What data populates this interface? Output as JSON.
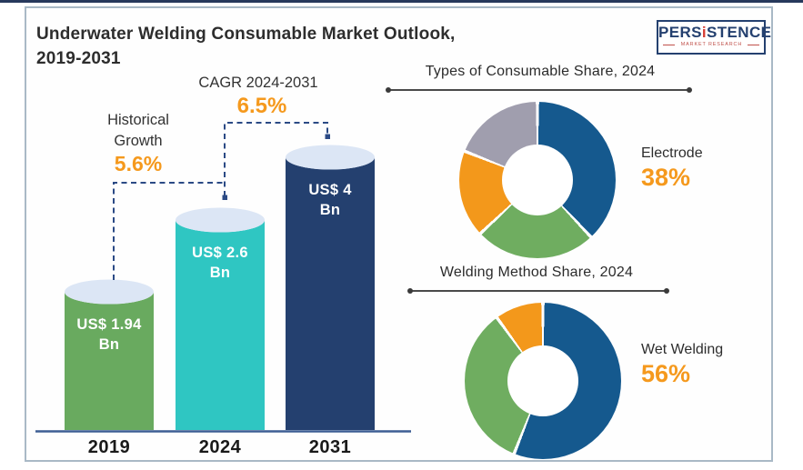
{
  "header": {
    "title_line1": "Underwater Welding Consumable Market Outlook,",
    "title_line2": "2019-2031"
  },
  "logo": {
    "part1": "PERS",
    "accent_letter": "i",
    "part2": "STENCE",
    "subtitle": "MARKET RESEARCH"
  },
  "palette": {
    "accent_orange": "#f5991d",
    "navy": "#24406f",
    "teal": "#2fc6c2",
    "green": "#69aa5f",
    "donut_blue": "#15598e",
    "donut_green": "#6fad60",
    "donut_orange": "#f3981b",
    "donut_gray": "#a09eae",
    "cylinder_top": "#dce6f5",
    "axis_line": "#3d5e94",
    "dashed_line": "#2b4a85"
  },
  "chart_data": [
    {
      "type": "bar",
      "title": "Underwater Welding Consumable Market Outlook, 2019-2031",
      "categories": [
        "2019",
        "2024",
        "2031"
      ],
      "values": [
        1.94,
        2.6,
        4
      ],
      "unit": "US$ Bn",
      "ylim": [
        0,
        4.4
      ],
      "value_labels": [
        [
          "US$ 1.94",
          "Bn"
        ],
        [
          "US$ 2.6",
          "Bn"
        ],
        [
          "US$ 4",
          "Bn"
        ]
      ],
      "bar_colors": [
        "#69aa5f",
        "#2fc6c2",
        "#24406f"
      ],
      "annotations": [
        {
          "label": "Historical Growth",
          "label_lines": [
            "Historical",
            "Growth"
          ],
          "value": "5.6%",
          "span": [
            "2019",
            "2024"
          ]
        },
        {
          "label": "CAGR 2024-2031",
          "value": "6.5%",
          "span": [
            "2024",
            "2031"
          ]
        }
      ]
    },
    {
      "type": "pie",
      "subtype": "donut",
      "title": "Types of Consumable Share, 2024",
      "segments": [
        {
          "name": "Electrode",
          "value": 38,
          "color": "#15598e"
        },
        {
          "name": "",
          "value": 25,
          "color": "#6fad60"
        },
        {
          "name": "",
          "value": 18,
          "color": "#f3981b"
        },
        {
          "name": "",
          "value": 19,
          "color": "#a09eae"
        }
      ],
      "callout": {
        "label": "Electrode",
        "value": "38%"
      },
      "legend_position": "right"
    },
    {
      "type": "pie",
      "subtype": "donut",
      "title": "Welding Method Share, 2024",
      "segments": [
        {
          "name": "Wet Welding",
          "value": 56,
          "color": "#15598e"
        },
        {
          "name": "",
          "value": 34,
          "color": "#6fad60"
        },
        {
          "name": "",
          "value": 10,
          "color": "#f3981b"
        }
      ],
      "callout": {
        "label": "Wet Welding",
        "value": "56%"
      },
      "legend_position": "right"
    }
  ]
}
